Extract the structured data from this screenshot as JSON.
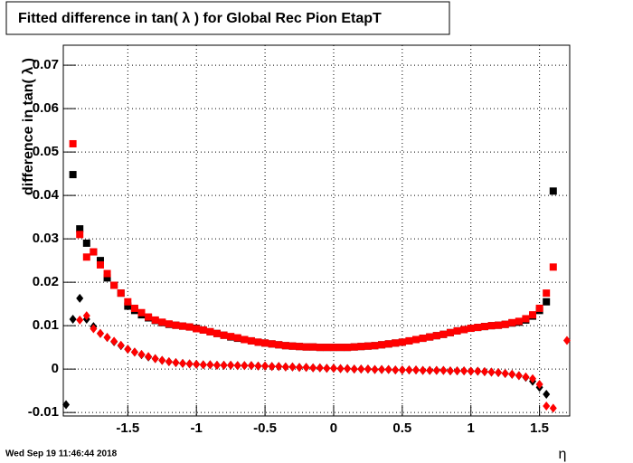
{
  "chart_data": {
    "type": "scatter",
    "title": "Fitted difference in tan( λ ) for Global Rec Pion EtapT",
    "y_label": "difference in tan( λ )",
    "x_label": "η",
    "timestamp": "Wed Sep 19 11:46:44 2018",
    "xlim": [
      -1.97,
      1.72
    ],
    "ylim": [
      -0.0108,
      0.0746
    ],
    "xticks": [
      -1.5,
      -1,
      -0.5,
      0,
      0.5,
      1,
      1.5
    ],
    "yticks": [
      -0.01,
      0,
      0.01,
      0.02,
      0.03,
      0.04,
      0.05,
      0.06,
      0.07
    ],
    "grid": true,
    "x": [
      -1.95,
      -1.9,
      -1.85,
      -1.8,
      -1.75,
      -1.7,
      -1.65,
      -1.6,
      -1.55,
      -1.5,
      -1.45,
      -1.4,
      -1.35,
      -1.3,
      -1.25,
      -1.2,
      -1.15,
      -1.1,
      -1.05,
      -1.0,
      -0.95,
      -0.9,
      -0.85,
      -0.8,
      -0.75,
      -0.7,
      -0.65,
      -0.6,
      -0.55,
      -0.5,
      -0.45,
      -0.4,
      -0.35,
      -0.3,
      -0.25,
      -0.2,
      -0.15,
      -0.1,
      -0.05,
      0,
      0.05,
      0.1,
      0.15,
      0.2,
      0.25,
      0.3,
      0.35,
      0.4,
      0.45,
      0.5,
      0.55,
      0.6,
      0.65,
      0.7,
      0.75,
      0.8,
      0.85,
      0.9,
      0.95,
      1.0,
      1.05,
      1.1,
      1.15,
      1.2,
      1.25,
      1.3,
      1.35,
      1.4,
      1.45,
      1.5,
      1.55,
      1.6,
      1.65,
      1.7
    ],
    "series": [
      {
        "color": "#000000",
        "marker": "square",
        "values": [
          null,
          0.0448,
          0.0323,
          0.029,
          0.027,
          0.025,
          0.021,
          0.0193,
          0.0175,
          0.0145,
          0.0135,
          0.0125,
          0.0118,
          0.0112,
          0.0107,
          0.0103,
          0.0101,
          0.0099,
          0.0097,
          0.0094,
          0.009,
          0.0086,
          0.0082,
          0.0078,
          0.0074,
          0.0071,
          0.0068,
          0.0065,
          0.0062,
          0.006,
          0.0058,
          0.0056,
          0.0054,
          0.0053,
          0.0052,
          0.0051,
          0.0051,
          0.005,
          0.005,
          0.005,
          0.005,
          0.005,
          0.0051,
          0.0052,
          0.0053,
          0.0054,
          0.0056,
          0.0058,
          0.006,
          0.0062,
          0.0065,
          0.0068,
          0.0071,
          0.0074,
          0.0077,
          0.008,
          0.0084,
          0.0088,
          0.0091,
          0.0094,
          0.0096,
          0.0098,
          0.01,
          0.0101,
          0.0103,
          0.0106,
          0.0108,
          0.0113,
          0.0122,
          0.0135,
          0.0155,
          0.041,
          null,
          null
        ]
      },
      {
        "color": "#000000",
        "marker": "diamond",
        "values": [
          -0.0082,
          0.0115,
          0.0163,
          0.0115,
          0.0098,
          0.0082,
          0.0073,
          0.0063,
          0.0054,
          0.0046,
          0.0039,
          0.0033,
          0.0028,
          0.0024,
          0.002,
          0.0017,
          0.0015,
          0.0013,
          0.0012,
          0.0011,
          0.001,
          0.001,
          0.0009,
          0.0009,
          0.0009,
          0.0008,
          0.0008,
          0.0008,
          0.0007,
          0.0007,
          0.0006,
          0.0006,
          0.0005,
          0.0005,
          0.0004,
          0.0004,
          0.0003,
          0.0003,
          0.0002,
          0.0002,
          0.0001,
          0.0001,
          0,
          0,
          0,
          -0.0001,
          -0.0001,
          -0.0001,
          -0.0002,
          -0.0002,
          -0.0002,
          -0.0002,
          -0.0003,
          -0.0003,
          -0.0003,
          -0.0003,
          -0.0004,
          -0.0004,
          -0.0004,
          -0.0005,
          -0.0005,
          -0.0006,
          -0.0007,
          -0.0008,
          -0.001,
          -0.0012,
          -0.0015,
          -0.0019,
          -0.0028,
          -0.0042,
          -0.0058,
          null,
          null,
          null
        ]
      },
      {
        "color": "#ff0000",
        "marker": "square",
        "values": [
          null,
          0.0519,
          0.031,
          0.0258,
          0.027,
          0.024,
          0.022,
          0.0193,
          0.0175,
          0.0155,
          0.014,
          0.013,
          0.012,
          0.0113,
          0.0108,
          0.0104,
          0.0101,
          0.0099,
          0.0097,
          0.0093,
          0.009,
          0.0086,
          0.0082,
          0.0078,
          0.0075,
          0.0072,
          0.0068,
          0.0065,
          0.0062,
          0.006,
          0.0058,
          0.0056,
          0.0054,
          0.0053,
          0.0052,
          0.0051,
          0.0051,
          0.005,
          0.005,
          0.005,
          0.005,
          0.005,
          0.0051,
          0.0052,
          0.0053,
          0.0054,
          0.0056,
          0.0058,
          0.006,
          0.0062,
          0.0065,
          0.0068,
          0.0071,
          0.0074,
          0.0077,
          0.008,
          0.0084,
          0.0088,
          0.0091,
          0.0094,
          0.0096,
          0.0098,
          0.01,
          0.0101,
          0.0103,
          0.0107,
          0.011,
          0.0116,
          0.0125,
          0.014,
          0.0175,
          0.0235,
          null,
          null
        ]
      },
      {
        "color": "#ff0000",
        "marker": "diamond",
        "values": [
          null,
          null,
          0.0113,
          0.0123,
          0.0093,
          0.0082,
          0.0073,
          0.0064,
          0.0055,
          0.0046,
          0.0039,
          0.0034,
          0.0029,
          0.0024,
          0.002,
          0.0017,
          0.0015,
          0.0013,
          0.0012,
          0.0011,
          0.001,
          0.001,
          0.0009,
          0.0009,
          0.0009,
          0.0008,
          0.0008,
          0.0008,
          0.0007,
          0.0007,
          0.0006,
          0.0006,
          0.0005,
          0.0005,
          0.0004,
          0.0004,
          0.0003,
          0.0003,
          0.0002,
          0.0002,
          0.0001,
          0.0001,
          0,
          0,
          0,
          -0.0001,
          -0.0001,
          -0.0001,
          -0.0002,
          -0.0002,
          -0.0002,
          -0.0002,
          -0.0003,
          -0.0003,
          -0.0003,
          -0.0003,
          -0.0004,
          -0.0004,
          -0.0004,
          -0.0005,
          -0.0005,
          -0.0006,
          -0.0007,
          -0.0008,
          -0.001,
          -0.0012,
          -0.0015,
          -0.0018,
          -0.0022,
          -0.0035,
          -0.0085,
          -0.009,
          null,
          0.0066
        ]
      }
    ]
  }
}
